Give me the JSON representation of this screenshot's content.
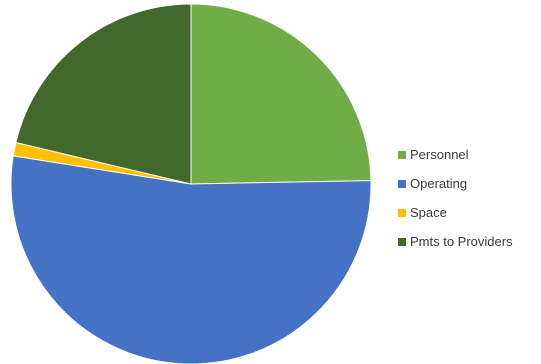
{
  "chart_data": {
    "type": "pie",
    "title": "",
    "categories": [
      "Personnel",
      "Operating",
      "Space",
      "Pmts to Providers"
    ],
    "values": [
      24.7,
      52.8,
      1.2,
      21.3
    ],
    "unit": "percent (estimated)",
    "colors": [
      "#70ad47",
      "#4472c4",
      "#ffc000",
      "#43682b"
    ],
    "start_angle": "12 o'clock, clockwise",
    "legend_position": "right"
  }
}
